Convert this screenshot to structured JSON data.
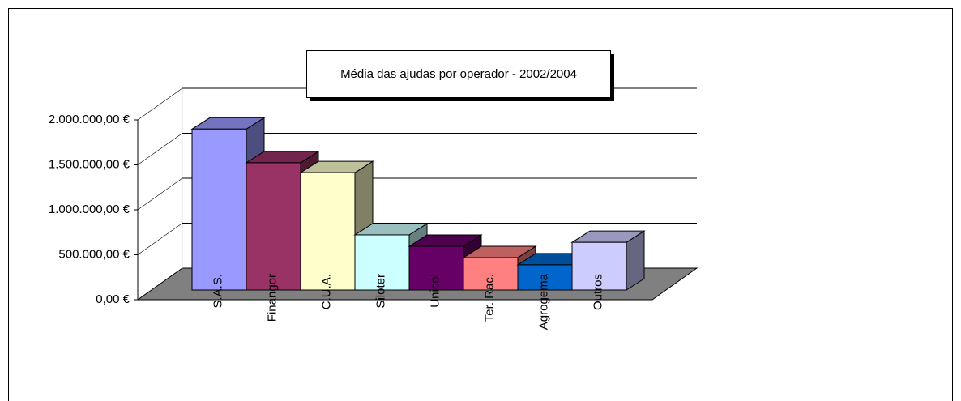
{
  "chart_data": {
    "type": "bar3d",
    "title": "Média das ajudas por operador - 2002/2004",
    "categories": [
      "S.A.S.",
      "Finangor",
      "C.U.A.",
      "Siloter",
      "Unicol",
      "Ter. Rac.",
      "Agrogema",
      "Outros"
    ],
    "values": [
      1790000,
      1415000,
      1305000,
      613000,
      486000,
      360000,
      280000,
      530000
    ],
    "colors": [
      "#9999ff",
      "#993366",
      "#ffffcc",
      "#ccffff",
      "#660066",
      "#ff8080",
      "#0066cc",
      "#ccccff"
    ],
    "ylim": [
      0,
      2000000
    ],
    "yticks": [
      {
        "value": 0,
        "label": "0,00 €"
      },
      {
        "value": 500000,
        "label": "500.000,00 €"
      },
      {
        "value": 1000000,
        "label": "1.000.000,00 €"
      },
      {
        "value": 1500000,
        "label": "1.500.000,00 €"
      },
      {
        "value": 2000000,
        "label": "2.000.000,00 €"
      }
    ],
    "grid": true
  }
}
